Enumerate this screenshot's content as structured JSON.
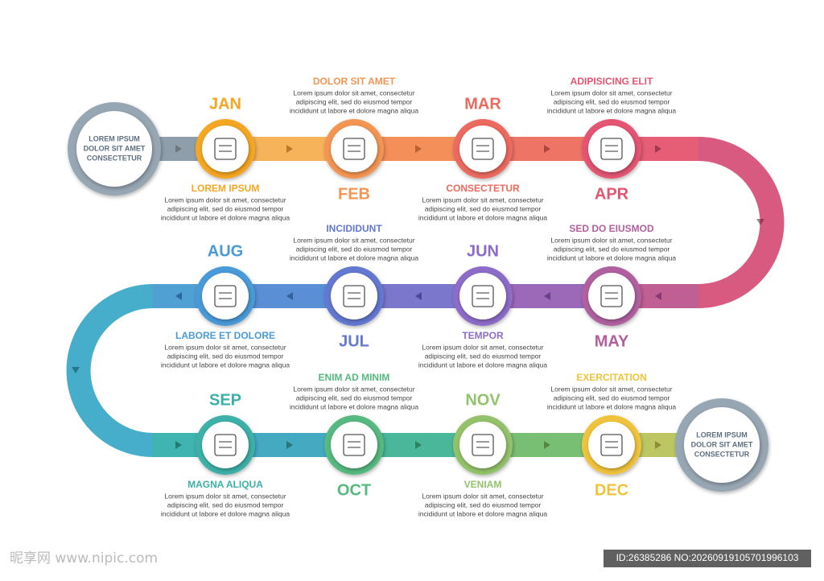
{
  "start": {
    "lines": [
      "LOREM IPSUM",
      "DOLOR SIT AMET",
      "CONSECTETUR"
    ]
  },
  "end": {
    "lines": [
      "LOREM IPSUM",
      "DOLOR SIT AMET",
      "CONSECTETUR"
    ]
  },
  "months": [
    {
      "month": "JAN",
      "heading": "LOREM IPSUM",
      "body": [
        "Lorem ipsum dolor sit amet, consectetur",
        "adipiscing elit, sed do eiusmod tempor",
        "incididunt ut labore et dolore magna aliqua"
      ]
    },
    {
      "month": "FEB",
      "heading": "DOLOR SIT AMET",
      "body": [
        "Lorem ipsum dolor sit amet, consectetur",
        "adipiscing elit, sed do eiusmod tempor",
        "incididunt ut labore et dolore magna aliqua"
      ]
    },
    {
      "month": "MAR",
      "heading": "CONSECTETUR",
      "body": [
        "Lorem ipsum dolor sit amet, consectetur",
        "adipiscing elit, sed do eiusmod tempor",
        "incididunt ut labore et dolore magna aliqua"
      ]
    },
    {
      "month": "APR",
      "heading": "ADIPISICING ELIT",
      "body": [
        "Lorem ipsum dolor sit amet, consectetur",
        "adipiscing elit, sed do eiusmod tempor",
        "incididunt ut labore et dolore magna aliqua"
      ]
    },
    {
      "month": "MAY",
      "heading": "SED DO EIUSMOD",
      "body": [
        "Lorem ipsum dolor sit amet, consectetur",
        "adipiscing elit, sed do eiusmod tempor",
        "incididunt ut labore et dolore magna aliqua"
      ]
    },
    {
      "month": "JUN",
      "heading": "TEMPOR",
      "body": [
        "Lorem ipsum dolor sit amet, consectetur",
        "adipiscing elit, sed do eiusmod tempor",
        "incididunt ut labore et dolore magna aliqua"
      ]
    },
    {
      "month": "JUL",
      "heading": "INCIDIDUNT",
      "body": [
        "Lorem ipsum dolor sit amet, consectetur",
        "adipiscing elit, sed do eiusmod tempor",
        "incididunt ut labore et dolore magna aliqua"
      ]
    },
    {
      "month": "AUG",
      "heading": "LABORE ET DOLORE",
      "body": [
        "Lorem ipsum dolor sit amet, consectetur",
        "adipiscing elit, sed do eiusmod tempor",
        "incididunt ut labore et dolore magna aliqua"
      ]
    },
    {
      "month": "SEP",
      "heading": "MAGNA ALIQUA",
      "body": [
        "Lorem ipsum dolor sit amet, consectetur",
        "adipiscing elit, sed do eiusmod tempor",
        "incididunt ut labore et dolore magna aliqua"
      ]
    },
    {
      "month": "OCT",
      "heading": "ENIM AD MINIM",
      "body": [
        "Lorem ipsum dolor sit amet, consectetur",
        "adipiscing elit, sed do eiusmod tempor",
        "incididunt ut labore et dolore magna aliqua"
      ]
    },
    {
      "month": "NOV",
      "heading": "VENIAM",
      "body": [
        "Lorem ipsum dolor sit amet, consectetur",
        "adipiscing elit, sed do eiusmod tempor",
        "incididunt ut labore et dolore magna aliqua"
      ]
    },
    {
      "month": "DEC",
      "heading": "EXERCITATION",
      "body": [
        "Lorem ipsum dolor sit amet, consectetur",
        "adipiscing elit, sed do eiusmod tempor",
        "incididunt ut labore et dolore magna aliqua"
      ]
    }
  ],
  "watermark": {
    "site": "昵享网 www.nipic.com",
    "id": "ID:26385286 NO:20260919105701996103"
  }
}
